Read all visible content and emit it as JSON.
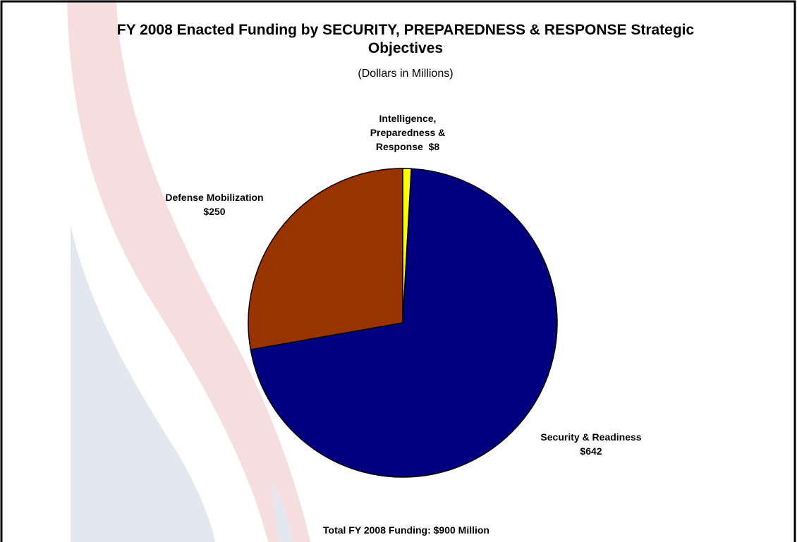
{
  "chart_data": {
    "type": "pie",
    "title": "FY 2008 Enacted Funding by SECURITY, PREPAREDNESS & RESPONSE Strategic Objectives",
    "subtitle": "(Dollars in Millions)",
    "categories": [
      "Intelligence, Preparedness & Response",
      "Security & Readiness",
      "Defense Mobilization"
    ],
    "values": [
      8,
      642,
      250
    ],
    "value_labels": [
      "$8",
      "$642",
      "$250"
    ],
    "colors": [
      "#ffff00",
      "#000080",
      "#993300"
    ],
    "annotation": "Total FY 2008 Funding:  $900 Million"
  }
}
